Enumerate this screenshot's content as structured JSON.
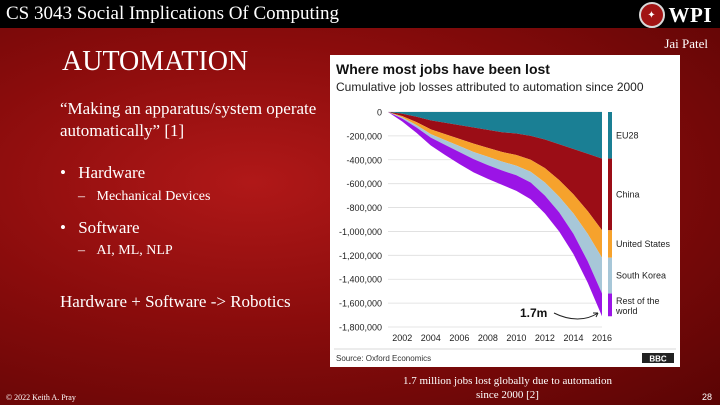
{
  "header": {
    "course": "CS 3043 Social Implications Of Computing",
    "logo_text": "WPI",
    "author": "Jai Patel"
  },
  "slide": {
    "title": "AUTOMATION",
    "quote": "“Making an apparatus/system operate automatically” [1]",
    "bullets": [
      {
        "label": "Hardware",
        "sub": "Mechanical Devices"
      },
      {
        "label": "Software",
        "sub": "AI, ML, NLP"
      }
    ],
    "equation": "Hardware + Software -> Robotics",
    "caption": "1.7 million jobs lost globally due to automation since 2000 [2]"
  },
  "footer": {
    "copyright": "© 2022 Keith A. Pray",
    "page": "28"
  },
  "colors": {
    "eu28": "#1a7f94",
    "china": "#9b0d16",
    "us": "#f6a22c",
    "korea": "#a7c7d8",
    "rest": "#9b14e6"
  },
  "chart_data": {
    "type": "area",
    "title": "Where most jobs have been lost",
    "subtitle": "Cumulative job losses attributed to automation since 2000",
    "x": [
      2001,
      2002,
      2003,
      2004,
      2005,
      2006,
      2007,
      2008,
      2009,
      2010,
      2011,
      2012,
      2013,
      2014,
      2015,
      2016
    ],
    "xticks": [
      "2002",
      "2004",
      "2006",
      "2008",
      "2010",
      "2012",
      "2014",
      "2016"
    ],
    "yticks": [
      "0",
      "-200,000",
      "-400,000",
      "-600,000",
      "-800,000",
      "-1,000,000",
      "-1,200,000",
      "-1,400,000",
      "-1,600,000",
      "-1,800,000"
    ],
    "ylim": [
      -1800000,
      0
    ],
    "series": [
      {
        "name": "EU28",
        "values": [
          0,
          -15000,
          -40000,
          -70000,
          -90000,
          -110000,
          -130000,
          -150000,
          -170000,
          -180000,
          -200000,
          -230000,
          -270000,
          -310000,
          -350000,
          -390000
        ]
      },
      {
        "name": "China",
        "values": [
          0,
          -20000,
          -45000,
          -75000,
          -95000,
          -115000,
          -135000,
          -150000,
          -165000,
          -180000,
          -200000,
          -240000,
          -300000,
          -380000,
          -480000,
          -600000
        ]
      },
      {
        "name": "United States",
        "values": [
          0,
          -10000,
          -25000,
          -40000,
          -50000,
          -60000,
          -70000,
          -75000,
          -80000,
          -90000,
          -100000,
          -120000,
          -140000,
          -160000,
          -190000,
          -230000
        ]
      },
      {
        "name": "South Korea",
        "values": [
          0,
          -10000,
          -20000,
          -30000,
          -40000,
          -50000,
          -60000,
          -70000,
          -75000,
          -80000,
          -90000,
          -110000,
          -130000,
          -170000,
          -230000,
          -300000
        ]
      },
      {
        "name": "Rest of the world",
        "values": [
          0,
          -25000,
          -45000,
          -65000,
          -85000,
          -100000,
          -110000,
          -115000,
          -120000,
          -130000,
          -140000,
          -150000,
          -160000,
          -170000,
          -180000,
          -190000
        ]
      }
    ],
    "annotation": "1.7m",
    "source": "Source: Oxford Economics",
    "brand": "BBC"
  }
}
